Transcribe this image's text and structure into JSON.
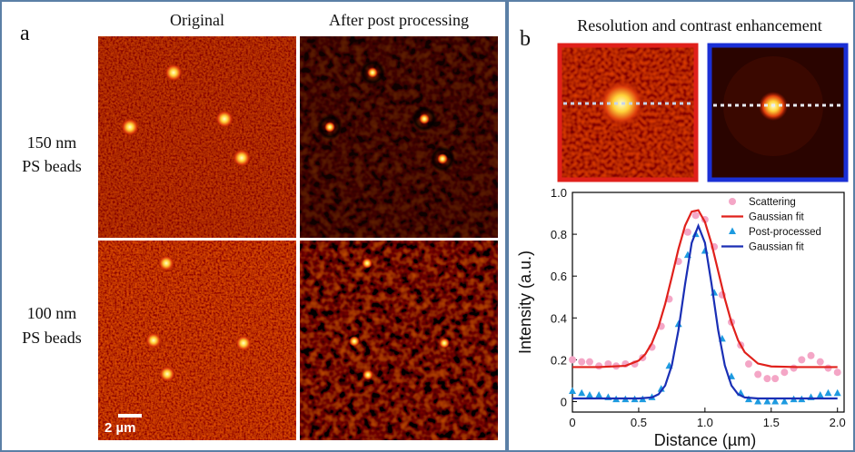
{
  "panel_a": {
    "label": "a",
    "columns": [
      "Original",
      "After post processing"
    ],
    "rows": [
      [
        "150 nm",
        "PS beads"
      ],
      [
        "100 nm",
        "PS beads"
      ]
    ],
    "scale_bar": "2 µm"
  },
  "panel_b": {
    "label": "b",
    "title": "Resolution and contrast enhancement"
  },
  "chart_data": {
    "type": "line",
    "x_label": "Distance (µm)",
    "y_label": "Intensity (a.u.)",
    "xlim": [
      0,
      2.05
    ],
    "ylim": [
      -0.05,
      1.0
    ],
    "xticks": [
      0,
      0.5,
      {
        "value": 1.0,
        "label": "1.0"
      },
      1.5,
      {
        "value": 2.0,
        "label": "2.0"
      }
    ],
    "yticks": [
      0,
      0.2,
      0.4,
      0.6,
      0.8,
      {
        "value": 1.0,
        "label": "1.0"
      }
    ],
    "legend": "upper right",
    "series": [
      {
        "name": "Scattering",
        "color": "#f4a6c6",
        "mode": "marker",
        "marker": "circle",
        "x": [
          0,
          0.07,
          0.13,
          0.2,
          0.27,
          0.33,
          0.4,
          0.47,
          0.53,
          0.6,
          0.67,
          0.73,
          0.8,
          0.87,
          0.93,
          1.0,
          1.07,
          1.13,
          1.2,
          1.27,
          1.33,
          1.4,
          1.47,
          1.53,
          1.6,
          1.67,
          1.73,
          1.8,
          1.87,
          1.93,
          2.0
        ],
        "values": [
          0.2,
          0.19,
          0.19,
          0.17,
          0.18,
          0.17,
          0.18,
          0.18,
          0.21,
          0.26,
          0.36,
          0.49,
          0.67,
          0.81,
          0.89,
          0.87,
          0.74,
          0.51,
          0.38,
          0.27,
          0.18,
          0.13,
          0.11,
          0.11,
          0.14,
          0.16,
          0.2,
          0.22,
          0.19,
          0.16,
          0.14
        ]
      },
      {
        "name": "Gaussian fit",
        "color": "#e0201b",
        "mode": "line",
        "x": [
          0,
          0.2,
          0.4,
          0.5,
          0.55,
          0.6,
          0.65,
          0.7,
          0.75,
          0.8,
          0.85,
          0.9,
          0.95,
          1.0,
          1.05,
          1.1,
          1.15,
          1.2,
          1.25,
          1.3,
          1.4,
          1.5,
          1.7,
          2.0
        ],
        "values": [
          0.165,
          0.165,
          0.171,
          0.196,
          0.227,
          0.28,
          0.36,
          0.467,
          0.596,
          0.729,
          0.841,
          0.908,
          0.915,
          0.859,
          0.754,
          0.623,
          0.492,
          0.379,
          0.293,
          0.236,
          0.182,
          0.168,
          0.165,
          0.165
        ]
      },
      {
        "name": "Post-processed",
        "color": "#1e9be0",
        "mode": "marker",
        "marker": "triangle",
        "x": [
          0,
          0.07,
          0.13,
          0.2,
          0.27,
          0.33,
          0.4,
          0.47,
          0.53,
          0.6,
          0.67,
          0.73,
          0.8,
          0.87,
          0.93,
          1.0,
          1.07,
          1.13,
          1.2,
          1.27,
          1.33,
          1.4,
          1.47,
          1.53,
          1.6,
          1.67,
          1.73,
          1.8,
          1.87,
          1.93,
          2.0
        ],
        "values": [
          0.05,
          0.04,
          0.03,
          0.03,
          0.02,
          0.01,
          0.01,
          0.01,
          0.01,
          0.02,
          0.06,
          0.17,
          0.37,
          0.7,
          0.8,
          0.72,
          0.52,
          0.3,
          0.12,
          0.04,
          0.01,
          0,
          0,
          0,
          0,
          0.01,
          0.01,
          0.02,
          0.03,
          0.04,
          0.04
        ]
      },
      {
        "name": "Gaussian fit",
        "color": "#1a2fb5",
        "mode": "line",
        "x": [
          0,
          0.4,
          0.5,
          0.6,
          0.65,
          0.7,
          0.75,
          0.8,
          0.85,
          0.9,
          0.95,
          1.0,
          1.05,
          1.1,
          1.15,
          1.2,
          1.25,
          1.3,
          1.4,
          1.5,
          2.0
        ],
        "values": [
          0.015,
          0.015,
          0.015,
          0.02,
          0.035,
          0.077,
          0.173,
          0.341,
          0.561,
          0.759,
          0.84,
          0.759,
          0.561,
          0.341,
          0.173,
          0.077,
          0.035,
          0.02,
          0.015,
          0.015,
          0.015
        ]
      }
    ]
  }
}
